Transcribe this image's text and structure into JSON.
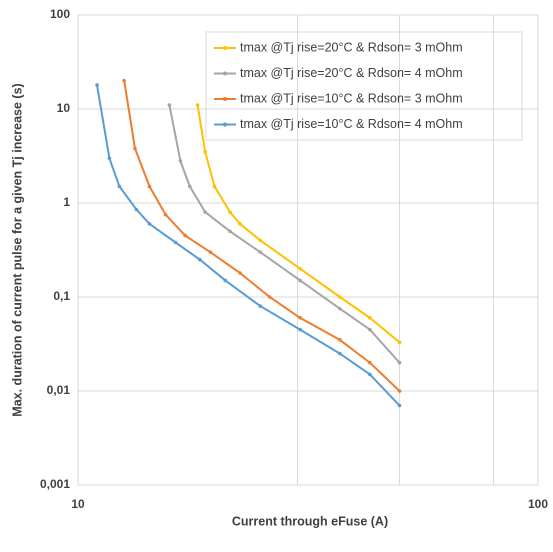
{
  "chart_data": {
    "type": "line",
    "x_label": "Current through eFuse (A)",
    "y_label": "Max. duration of current pulse for a given Tj increase (s)",
    "x_log": true,
    "y_log": true,
    "grid": true,
    "legend": "top-right",
    "xlim": [
      10,
      100
    ],
    "xticks": [
      10,
      100
    ],
    "xgrid": [
      30,
      50,
      80
    ],
    "ylim": [
      0.001,
      100
    ],
    "yticks": [
      {
        "value": 0.001,
        "label": "0,001"
      },
      {
        "value": 0.01,
        "label": "0,01"
      },
      {
        "value": 0.1,
        "label": "0,1"
      },
      1,
      10,
      100
    ],
    "series": [
      {
        "name": "tmax @Tj rise=20°C & Rdson= 3 mOhm",
        "color": "#ffc000",
        "x": [
          18.2,
          18.9,
          19.8,
          21.4,
          22.5,
          24.9,
          30.4,
          37.1,
          43.1,
          50
        ],
        "values": [
          11,
          3.5,
          1.5,
          0.8,
          0.6,
          0.4,
          0.2,
          0.1,
          0.06,
          0.033
        ]
      },
      {
        "name": "tmax @Tj rise=20°C & Rdson= 4 mOhm",
        "color": "#a5a5a5",
        "x": [
          15.8,
          16.7,
          17.5,
          18.9,
          21.4,
          24.9,
          30.4,
          37.1,
          43.1,
          50
        ],
        "values": [
          11,
          2.8,
          1.5,
          0.8,
          0.5,
          0.3,
          0.15,
          0.075,
          0.045,
          0.02
        ]
      },
      {
        "name": "tmax @Tj rise=10°C & Rdson= 3 mOhm",
        "color": "#ed7d31",
        "x": [
          12.6,
          13.3,
          14.3,
          15.5,
          17.1,
          19.4,
          22.5,
          26.1,
          30.4,
          37.1,
          43.1,
          50
        ],
        "values": [
          20,
          3.8,
          1.5,
          0.75,
          0.45,
          0.3,
          0.18,
          0.1,
          0.06,
          0.035,
          0.02,
          0.01
        ]
      },
      {
        "name": "tmax @Tj rise=10°C & Rdson= 4 mOhm",
        "color": "#5b9bd5",
        "x": [
          11.0,
          11.7,
          12.3,
          13.4,
          14.3,
          16.3,
          18.4,
          20.9,
          24.9,
          30.4,
          37.1,
          43.1,
          50
        ],
        "values": [
          18,
          3,
          1.5,
          0.85,
          0.6,
          0.38,
          0.25,
          0.15,
          0.08,
          0.045,
          0.025,
          0.015,
          0.007
        ]
      }
    ]
  }
}
